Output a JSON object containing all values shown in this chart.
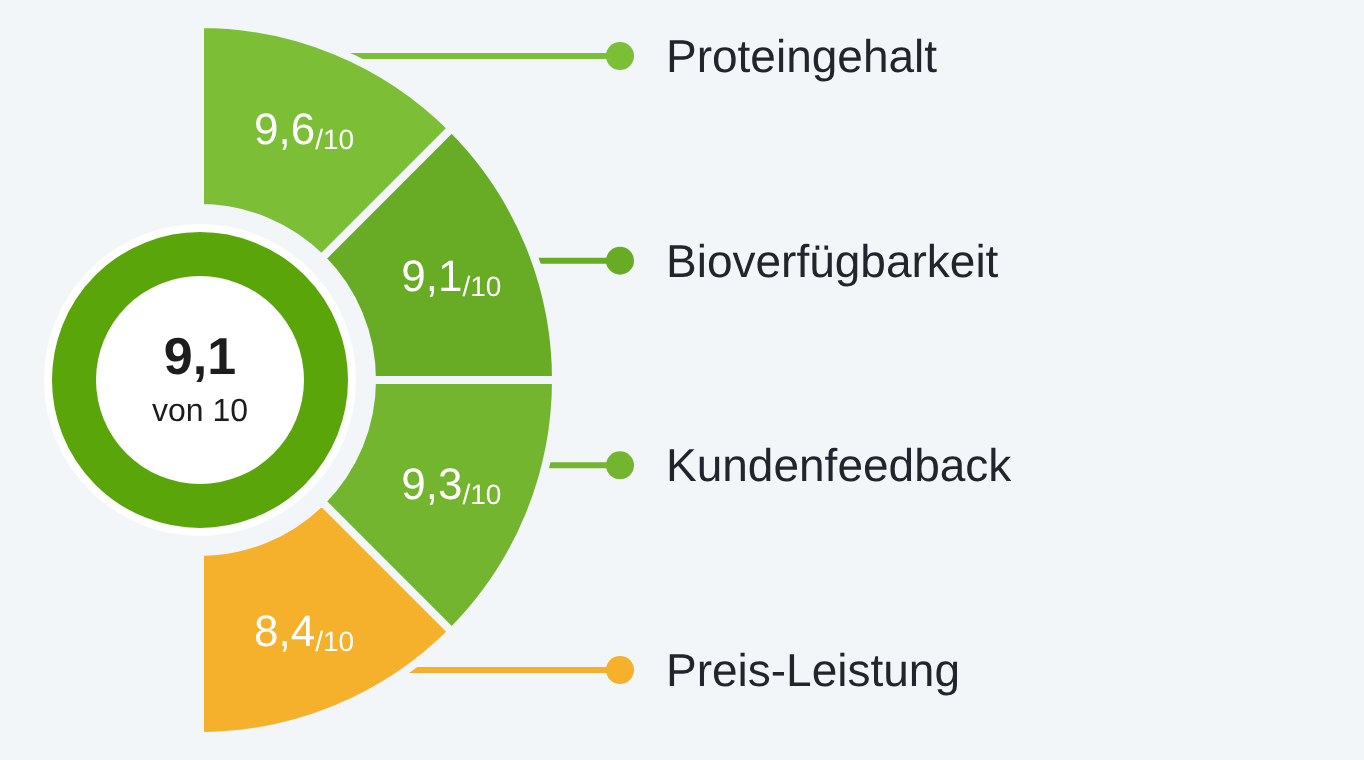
{
  "chart_data": {
    "type": "other",
    "title": "9,1",
    "subtitle": "von 10",
    "categories": [
      "Proteingehalt",
      "Bioverfügbarkeit",
      "Kundenfeedback",
      "Preis-Leistung"
    ],
    "values": [
      9.6,
      9.1,
      9.3,
      8.4
    ],
    "value_labels": [
      "9,6$_{/10}$",
      "9,1$_{/10}$",
      "9,3$_{/10}$",
      "8,4$_{/10}$"
    ],
    "colors": [
      "#7cbf36",
      "#68ab25",
      "#74b52f",
      "#f5b02c"
    ]
  }
}
